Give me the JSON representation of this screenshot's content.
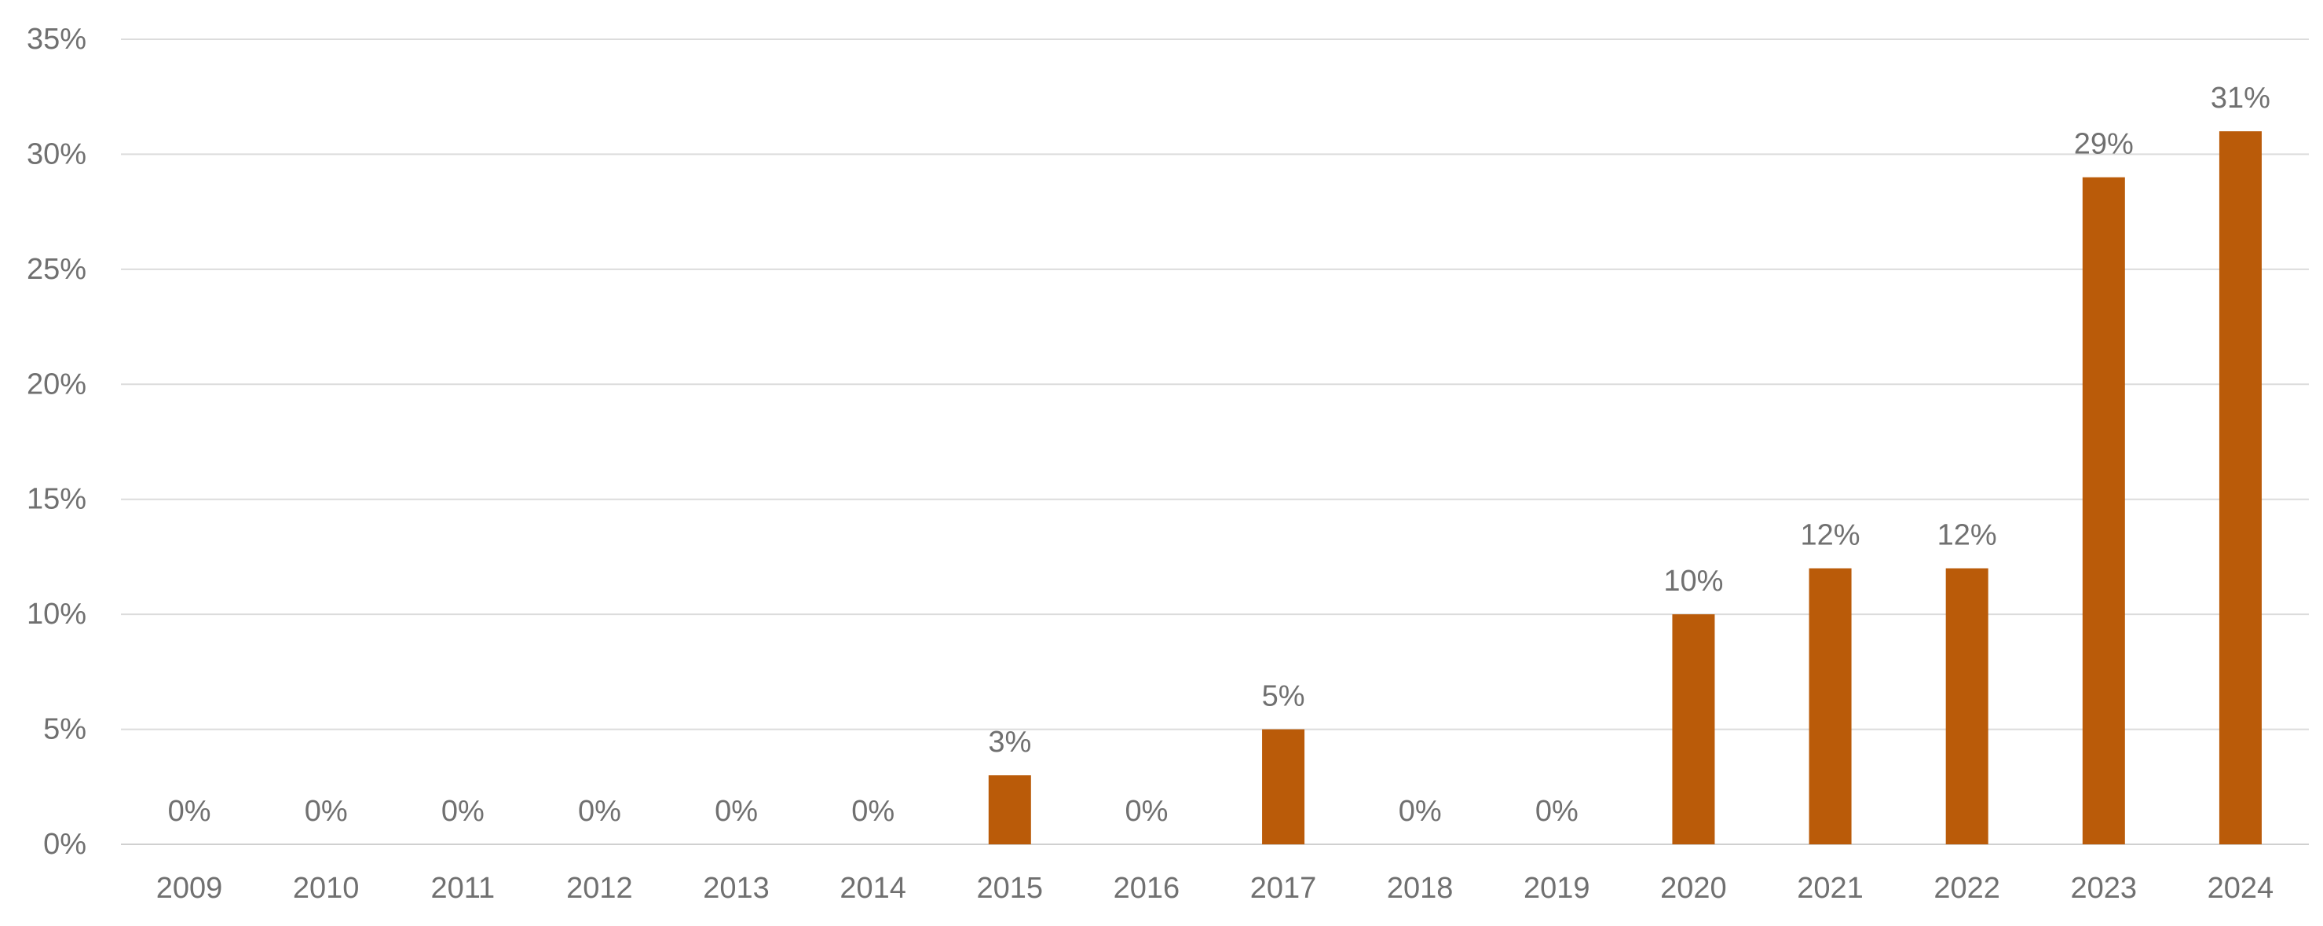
{
  "chart_data": {
    "type": "bar",
    "title": "",
    "xlabel": "",
    "ylabel": "",
    "categories": [
      "2009",
      "2010",
      "2011",
      "2012",
      "2013",
      "2014",
      "2015",
      "2016",
      "2017",
      "2018",
      "2019",
      "2020",
      "2021",
      "2022",
      "2023",
      "2024"
    ],
    "values": [
      0,
      0,
      0,
      0,
      0,
      0,
      3,
      0,
      5,
      0,
      0,
      10,
      12,
      12,
      29,
      31
    ],
    "data_labels": [
      "0%",
      "0%",
      "0%",
      "0%",
      "0%",
      "0%",
      "3%",
      "0%",
      "5%",
      "0%",
      "0%",
      "10%",
      "12%",
      "12%",
      "29%",
      "31%"
    ],
    "ylim": [
      0,
      35
    ],
    "yticks": [
      0,
      5,
      10,
      15,
      20,
      25,
      30,
      35
    ],
    "ytick_labels": [
      "0%",
      "5%",
      "10%",
      "15%",
      "20%",
      "25%",
      "30%",
      "35%"
    ],
    "grid": true,
    "legend": "none",
    "bar_color": "#BA5B09"
  }
}
